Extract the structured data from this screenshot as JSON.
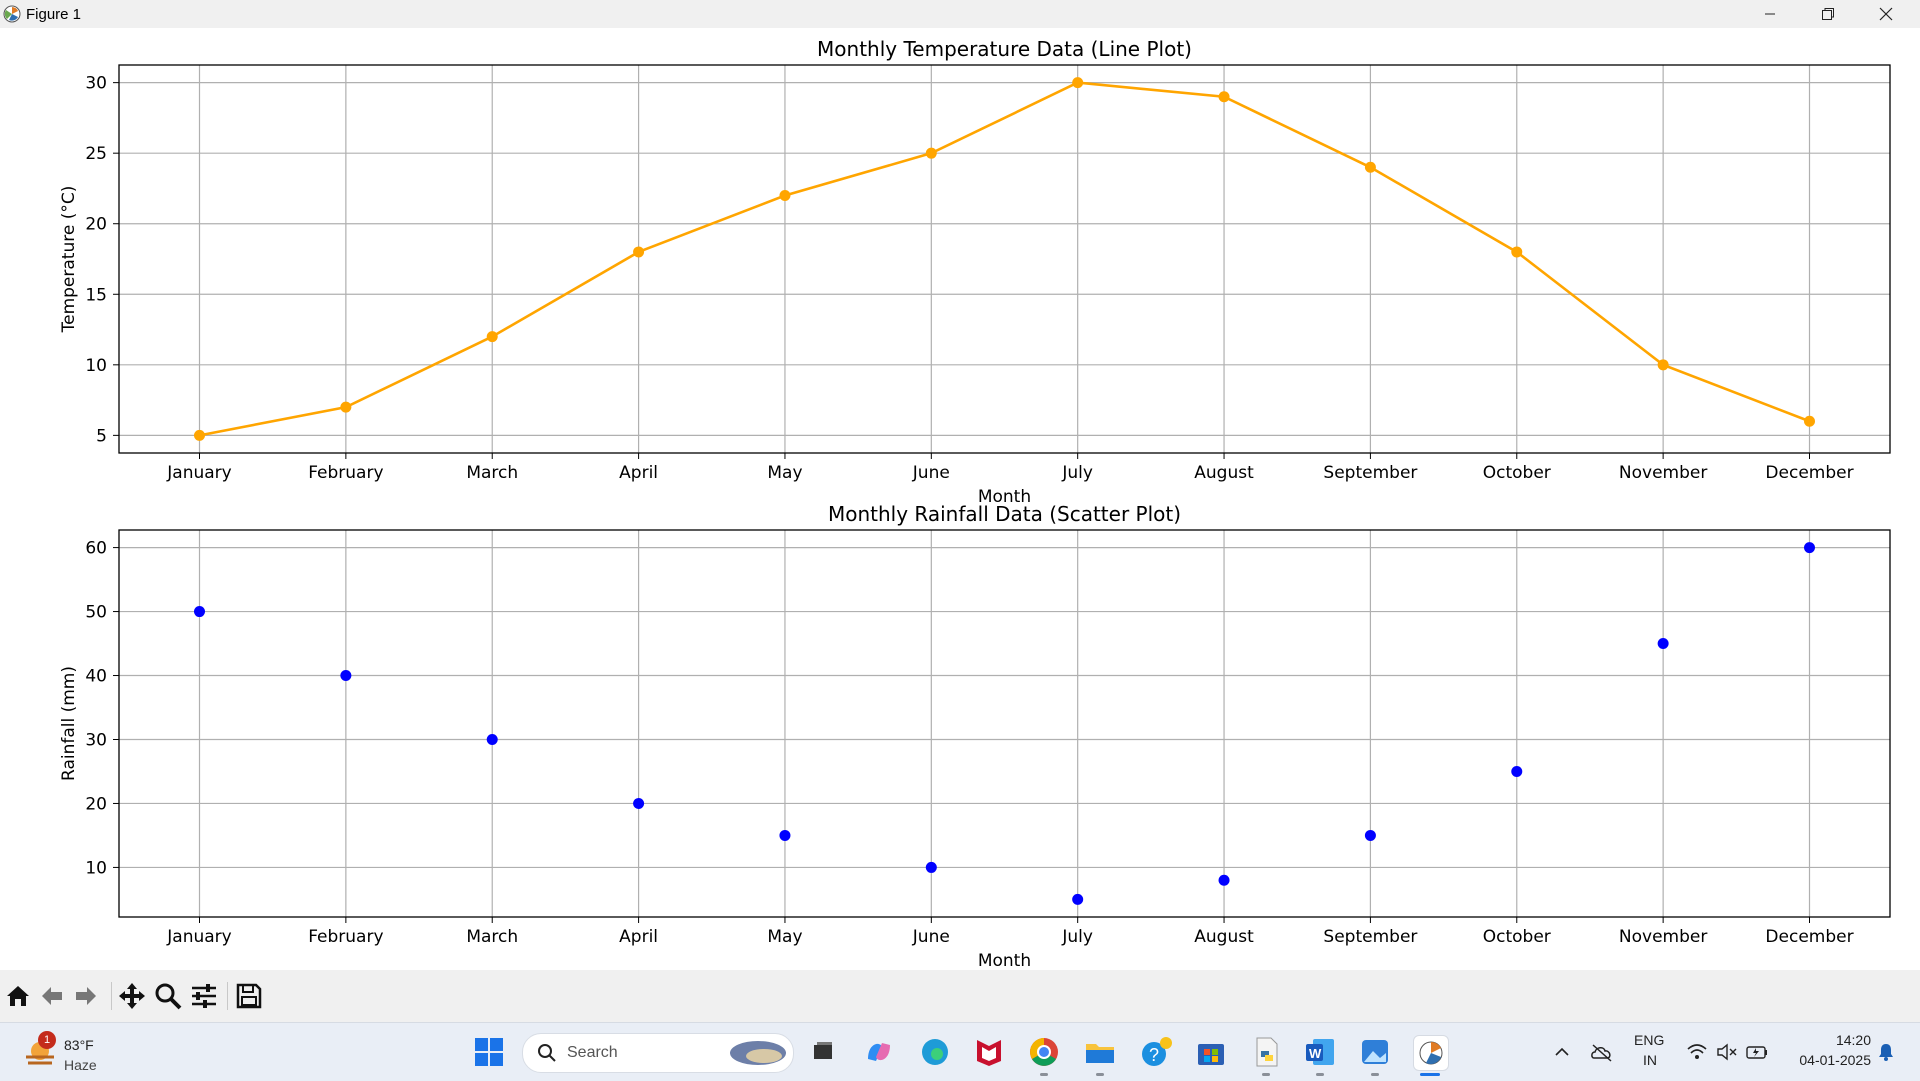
{
  "window": {
    "title": "Figure 1"
  },
  "chart_data": [
    {
      "type": "line",
      "title": "Monthly Temperature Data (Line Plot)",
      "xlabel": "Month",
      "ylabel": "Temperature (°C)",
      "categories": [
        "January",
        "February",
        "March",
        "April",
        "May",
        "June",
        "July",
        "August",
        "September",
        "October",
        "November",
        "December"
      ],
      "values": [
        5,
        7,
        12,
        18,
        22,
        25,
        30,
        29,
        24,
        18,
        10,
        6
      ],
      "ylim": [
        3.75,
        31.25
      ],
      "yticks": [
        5,
        10,
        15,
        20,
        25,
        30
      ],
      "grid": true,
      "marker": "circle",
      "color": "#ffa500"
    },
    {
      "type": "scatter",
      "title": "Monthly Rainfall Data (Scatter Plot)",
      "xlabel": "Month",
      "ylabel": "Rainfall (mm)",
      "categories": [
        "January",
        "February",
        "March",
        "April",
        "May",
        "June",
        "July",
        "August",
        "September",
        "October",
        "November",
        "December"
      ],
      "values": [
        50,
        40,
        30,
        20,
        15,
        10,
        5,
        8,
        15,
        25,
        45,
        60
      ],
      "ylim": [
        2.25,
        62.75
      ],
      "yticks": [
        10,
        20,
        30,
        40,
        50,
        60
      ],
      "grid": true,
      "color": "#0000ff"
    }
  ],
  "toolbar": {
    "icons": [
      "home-icon",
      "back-icon",
      "forward-icon",
      "pan-icon",
      "zoom-icon",
      "configure-subplots-icon",
      "save-icon"
    ]
  },
  "taskbar": {
    "weather_temp": "83°F",
    "weather_desc": "Haze",
    "weather_badge": "1",
    "search_placeholder": "Search",
    "lang_line1": "ENG",
    "lang_line2": "IN",
    "time": "14:20",
    "date": "04-01-2025"
  }
}
